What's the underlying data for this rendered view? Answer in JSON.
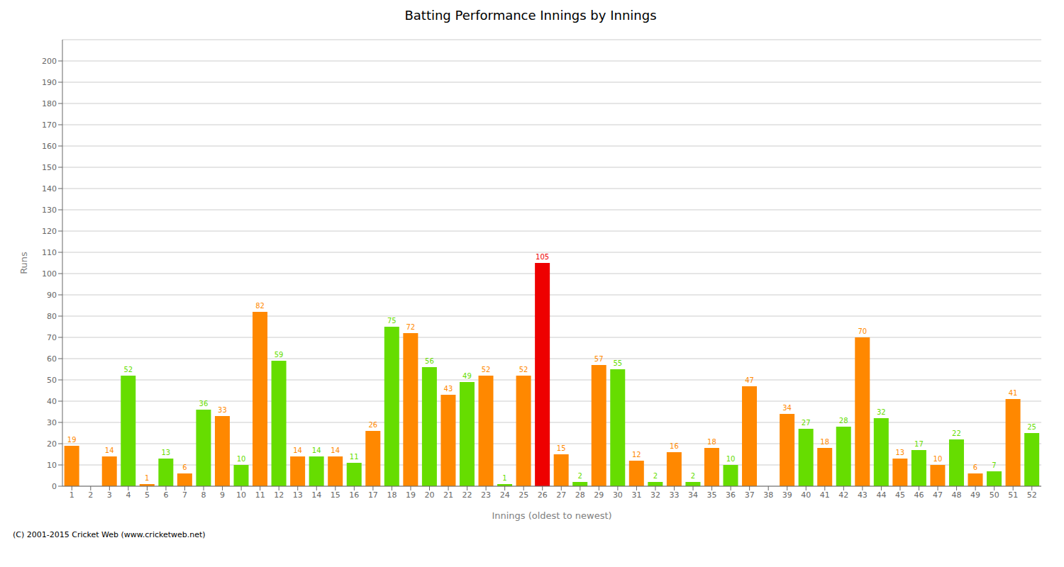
{
  "chart_data": {
    "type": "bar",
    "title": "Batting Performance Innings by Innings",
    "xlabel": "Innings (oldest to newest)",
    "ylabel": "Runs",
    "categories": [
      "1",
      "2",
      "3",
      "4",
      "5",
      "6",
      "7",
      "8",
      "9",
      "10",
      "11",
      "12",
      "13",
      "14",
      "15",
      "16",
      "17",
      "18",
      "19",
      "20",
      "21",
      "22",
      "23",
      "24",
      "25",
      "26",
      "27",
      "28",
      "29",
      "30",
      "31",
      "32",
      "33",
      "34",
      "35",
      "36",
      "37",
      "38",
      "39",
      "40",
      "41",
      "42",
      "43",
      "44",
      "45",
      "46",
      "47",
      "48",
      "49",
      "50",
      "51",
      "52"
    ],
    "values": [
      19,
      0,
      14,
      52,
      1,
      13,
      6,
      36,
      33,
      10,
      82,
      59,
      14,
      14,
      14,
      11,
      26,
      75,
      72,
      56,
      43,
      49,
      52,
      1,
      52,
      105,
      15,
      2,
      57,
      55,
      12,
      2,
      16,
      2,
      18,
      10,
      47,
      0,
      34,
      27,
      18,
      28,
      70,
      32,
      13,
      17,
      10,
      22,
      6,
      7,
      41,
      25
    ],
    "colors": [
      "#ff8800",
      "#66dd00",
      "#ff8800",
      "#66dd00",
      "#ff8800",
      "#66dd00",
      "#ff8800",
      "#66dd00",
      "#ff8800",
      "#66dd00",
      "#ff8800",
      "#66dd00",
      "#ff8800",
      "#66dd00",
      "#ff8800",
      "#66dd00",
      "#ff8800",
      "#66dd00",
      "#ff8800",
      "#66dd00",
      "#ff8800",
      "#66dd00",
      "#ff8800",
      "#66dd00",
      "#ff8800",
      "#ee0000",
      "#ff8800",
      "#66dd00",
      "#ff8800",
      "#66dd00",
      "#ff8800",
      "#66dd00",
      "#ff8800",
      "#66dd00",
      "#ff8800",
      "#66dd00",
      "#ff8800",
      "#66dd00",
      "#ff8800",
      "#66dd00",
      "#ff8800",
      "#66dd00",
      "#ff8800",
      "#66dd00",
      "#ff8800",
      "#66dd00",
      "#ff8800",
      "#66dd00",
      "#ff8800",
      "#66dd00",
      "#ff8800",
      "#66dd00"
    ],
    "ylim": [
      0,
      210
    ],
    "yticks": [
      0,
      10,
      20,
      30,
      40,
      50,
      60,
      70,
      80,
      90,
      100,
      110,
      120,
      130,
      140,
      150,
      160,
      170,
      180,
      190,
      200
    ],
    "grid": true,
    "data_labels": true,
    "annotations": [
      "(C) 2001-2015 Cricket Web (www.cricketweb.net)"
    ]
  }
}
